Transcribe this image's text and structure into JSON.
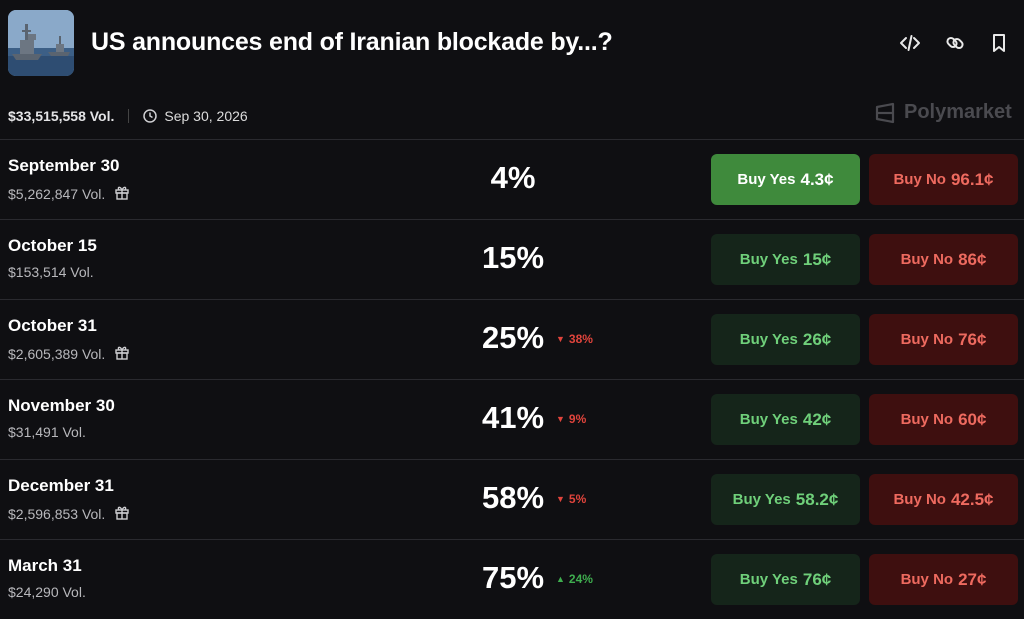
{
  "header": {
    "title": "US announces end of Iranian blockade by...?",
    "volume": "$33,515,558 Vol.",
    "end_date": "Sep 30, 2026",
    "brand": "Polymarket",
    "icons": [
      "embed-code-icon",
      "link-icon",
      "bookmark-icon"
    ]
  },
  "colors": {
    "background": "#0f0f12",
    "yes_active": "#3f8a3c",
    "yes_bg": "#15251a",
    "yes_text": "#6fd07a",
    "no_bg": "#3e0f0f",
    "no_text": "#ee6a5f",
    "down": "#e0443c",
    "up": "#3fae4f"
  },
  "rows": [
    {
      "name": "September 30",
      "vol": "$5,262,847 Vol.",
      "gift": true,
      "pct": "4%",
      "change": null,
      "yes_label": "Buy Yes",
      "yes_price": "4.3¢",
      "no_label": "Buy No",
      "no_price": "96.1¢",
      "yes_active": true
    },
    {
      "name": "October 15",
      "vol": "$153,514 Vol.",
      "gift": false,
      "pct": "15%",
      "change": null,
      "yes_label": "Buy Yes",
      "yes_price": "15¢",
      "no_label": "Buy No",
      "no_price": "86¢",
      "yes_active": false
    },
    {
      "name": "October 31",
      "vol": "$2,605,389 Vol.",
      "gift": true,
      "pct": "25%",
      "change": {
        "dir": "down",
        "value": "38%"
      },
      "yes_label": "Buy Yes",
      "yes_price": "26¢",
      "no_label": "Buy No",
      "no_price": "76¢",
      "yes_active": false
    },
    {
      "name": "November 30",
      "vol": "$31,491 Vol.",
      "gift": false,
      "pct": "41%",
      "change": {
        "dir": "down",
        "value": "9%"
      },
      "yes_label": "Buy Yes",
      "yes_price": "42¢",
      "no_label": "Buy No",
      "no_price": "60¢",
      "yes_active": false
    },
    {
      "name": "December 31",
      "vol": "$2,596,853 Vol.",
      "gift": true,
      "pct": "58%",
      "change": {
        "dir": "down",
        "value": "5%"
      },
      "yes_label": "Buy Yes",
      "yes_price": "58.2¢",
      "no_label": "Buy No",
      "no_price": "42.5¢",
      "yes_active": false
    },
    {
      "name": "March 31",
      "vol": "$24,290 Vol.",
      "gift": false,
      "pct": "75%",
      "change": {
        "dir": "up",
        "value": "24%"
      },
      "yes_label": "Buy Yes",
      "yes_price": "76¢",
      "no_label": "Buy No",
      "no_price": "27¢",
      "yes_active": false
    }
  ]
}
